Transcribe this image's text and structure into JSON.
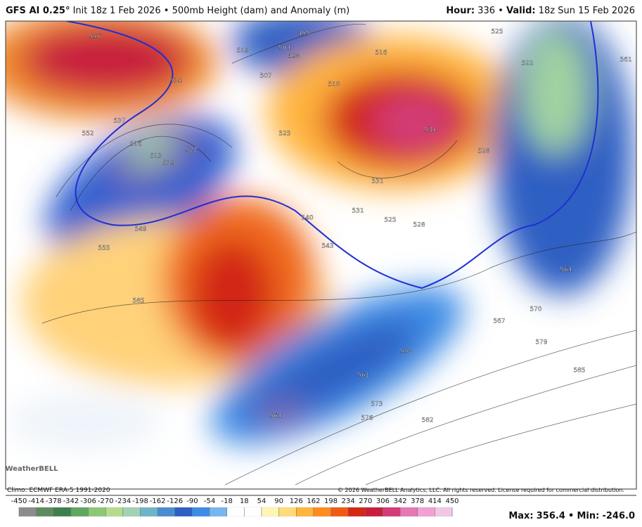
{
  "header": {
    "model": "GFS AI 0.25°",
    "description": "Init 18z 1 Feb 2026 • 500mb Height (dam) and Anomaly (m)",
    "hour_label": "Hour:",
    "hour": "336",
    "separator": "•",
    "valid_label": "Valid:",
    "valid": "18z Sun 15 Feb 2026"
  },
  "map": {
    "contour_labels": [
      546,
      552,
      537,
      516,
      513,
      519,
      522,
      534,
      519,
      507,
      504,
      498,
      495,
      510,
      516,
      525,
      534,
      531,
      531,
      525,
      528,
      528,
      525,
      522,
      561,
      540,
      543,
      549,
      555,
      585,
      564,
      570,
      567,
      579,
      585,
      558,
      561,
      573,
      576,
      582,
      564
    ],
    "logo": "WeatherBELL",
    "climo": "Climo: ECMWF ERA-5 1991-2020",
    "copyright": "© 2026 WeatherBELL Analytics, LLC. All rights reserved. License required for commercial distribution."
  },
  "colorbar": {
    "ticks": [
      -450,
      -414,
      -378,
      -342,
      -306,
      -270,
      -234,
      -198,
      -162,
      -126,
      -90,
      -54,
      -18,
      18,
      54,
      90,
      126,
      162,
      198,
      234,
      270,
      306,
      342,
      378,
      414,
      450
    ],
    "colors": [
      "#8c8c8c",
      "#5f8a5f",
      "#3f7f4f",
      "#5fa85f",
      "#8cc878",
      "#b4dc8c",
      "#a0d2b4",
      "#6eb4c8",
      "#4a8cd2",
      "#2f5fc3",
      "#3c8ce6",
      "#78b4f0",
      "#ffffff",
      "#ffffff",
      "#fff5b4",
      "#ffdc78",
      "#ffb43c",
      "#ff8c1e",
      "#f05a14",
      "#d22814",
      "#c81e3c",
      "#d23c78",
      "#e678b4",
      "#f0a0d2",
      "#f0c8e6"
    ]
  },
  "footer": {
    "max_label": "Max:",
    "max": "356.4",
    "separator": "•",
    "min_label": "Min:",
    "min": "-246.0"
  }
}
